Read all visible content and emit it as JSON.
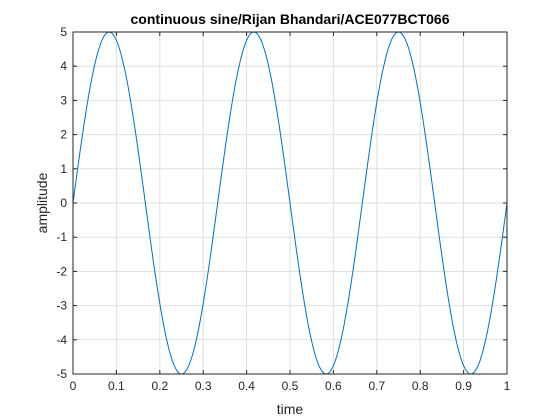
{
  "chart_data": {
    "type": "line",
    "title": "continuous sine/Rijan Bhandari/ACE077BCT066",
    "xlabel": "time",
    "ylabel": "amplitude",
    "xlim": [
      0,
      1
    ],
    "ylim": [
      -5,
      5
    ],
    "xticks": [
      "0",
      "0.1",
      "0.2",
      "0.3",
      "0.4",
      "0.5",
      "0.6",
      "0.7",
      "0.8",
      "0.9",
      "1"
    ],
    "yticks": [
      "-5",
      "-4",
      "-3",
      "-2",
      "-1",
      "0",
      "1",
      "2",
      "3",
      "4",
      "5"
    ],
    "grid": true,
    "series": [
      {
        "amplitude": 5,
        "frequency": 3,
        "x_range": [
          0,
          1
        ],
        "color": "#0072BD"
      }
    ]
  }
}
